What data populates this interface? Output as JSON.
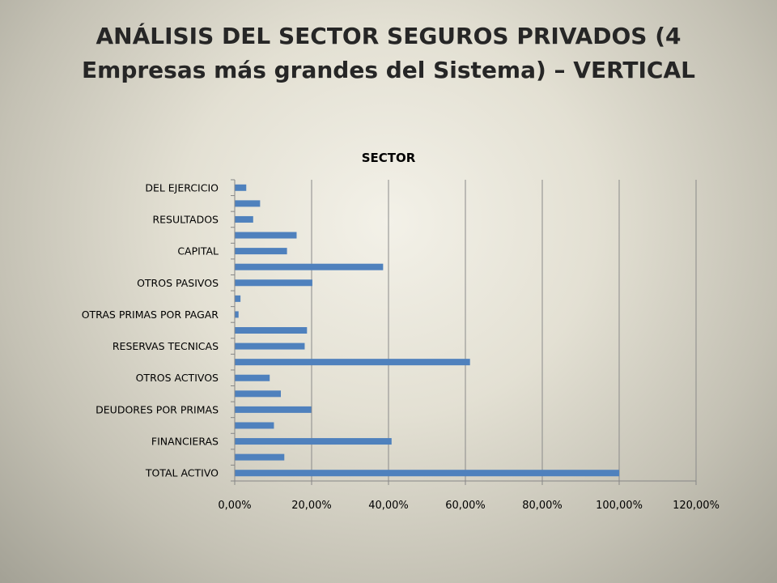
{
  "slide": {
    "title_line1": "ANÁLISIS DEL SECTOR SEGUROS PRIVADOS (4",
    "title_line2": "Empresas más grandes del Sistema) – VERTICAL"
  },
  "chart_data": {
    "type": "bar",
    "orientation": "horizontal",
    "title": "SECTOR",
    "xlabel": "",
    "ylabel": "",
    "xlim": [
      0,
      120
    ],
    "x_ticks": [
      "0,00%",
      "20,00%",
      "40,00%",
      "60,00%",
      "80,00%",
      "100,00%",
      "120,00%"
    ],
    "grid": "vertical",
    "legend": "none",
    "bar_color": "#4f81bd",
    "categories": [
      "TOTAL ACTIVO",
      "",
      "FINANCIERAS",
      "",
      "DEUDORES POR PRIMAS",
      "",
      "OTROS ACTIVOS",
      "",
      "RESERVAS TECNICAS",
      "",
      "OTRAS PRIMAS POR PAGAR",
      "",
      "OTROS PASIVOS",
      "",
      "CAPITAL",
      "",
      "RESULTADOS",
      "",
      "DEL EJERCICIO"
    ],
    "values": [
      100.0,
      12.9,
      40.8,
      10.2,
      19.9,
      12.0,
      9.1,
      61.2,
      18.2,
      18.8,
      1.0,
      1.5,
      20.2,
      38.6,
      13.6,
      16.1,
      4.8,
      6.6,
      3.0
    ]
  }
}
